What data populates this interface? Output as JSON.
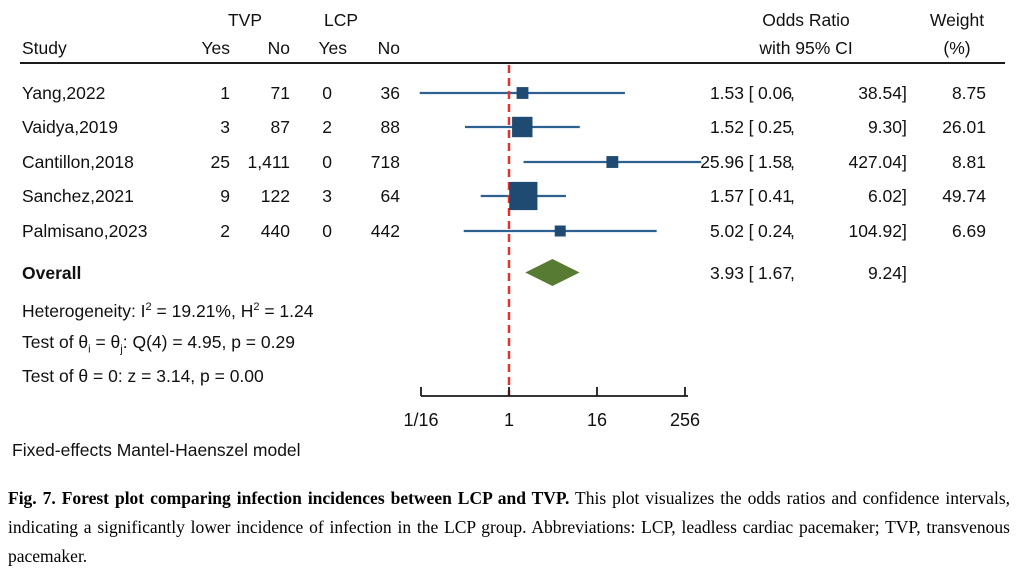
{
  "colors": {
    "marker_square": "#1f4b73",
    "ci_line": "#2e6090",
    "diamond": "#587b33",
    "reference_line": "#e8312a",
    "axis": "#1a1a1a"
  },
  "header": {
    "study": "Study",
    "tvp_group": "TVP",
    "lcp_group": "LCP",
    "tvp_yes": "Yes",
    "tvp_no": "No",
    "lcp_yes": "Yes",
    "lcp_no": "No",
    "or_line1": "Odds Ratio",
    "or_line2": "with 95% CI",
    "weight_line1": "Weight",
    "weight_line2": "(%)"
  },
  "format": {
    "open_bracket": "[",
    "comma": ",",
    "close_bracket": "]"
  },
  "chart_data": {
    "type": "forest",
    "x_scale": "log2",
    "x_ticks": [
      {
        "value": 0.0625,
        "label": "1/16"
      },
      {
        "value": 1,
        "label": "1"
      },
      {
        "value": 16,
        "label": "16"
      },
      {
        "value": 256,
        "label": "256"
      }
    ],
    "reference_value": 1,
    "studies": [
      {
        "label": "Yang,2022",
        "tvp_yes": "1",
        "tvp_no": "71",
        "lcp_yes": "0",
        "lcp_no": "36",
        "or": 1.53,
        "ci_low": 0.06,
        "ci_high": 38.54,
        "weight": 8.75,
        "or_text": "1.53",
        "ci_low_text": "0.06",
        "ci_high_text": "38.54",
        "weight_text": "8.75"
      },
      {
        "label": "Vaidya,2019",
        "tvp_yes": "3",
        "tvp_no": "87",
        "lcp_yes": "2",
        "lcp_no": "88",
        "or": 1.52,
        "ci_low": 0.25,
        "ci_high": 9.3,
        "weight": 26.01,
        "or_text": "1.52",
        "ci_low_text": "0.25",
        "ci_high_text": "9.30",
        "weight_text": "26.01"
      },
      {
        "label": "Cantillon,2018",
        "tvp_yes": "25",
        "tvp_no": "1,411",
        "lcp_yes": "0",
        "lcp_no": "718",
        "or": 25.96,
        "ci_low": 1.58,
        "ci_high": 427.04,
        "weight": 8.81,
        "or_text": "25.96",
        "ci_low_text": "1.58",
        "ci_high_text": "427.04",
        "weight_text": "8.81"
      },
      {
        "label": "Sanchez,2021",
        "tvp_yes": "9",
        "tvp_no": "122",
        "lcp_yes": "3",
        "lcp_no": "64",
        "or": 1.57,
        "ci_low": 0.41,
        "ci_high": 6.02,
        "weight": 49.74,
        "or_text": "1.57",
        "ci_low_text": "0.41",
        "ci_high_text": "6.02",
        "weight_text": "49.74"
      },
      {
        "label": "Palmisano,2023",
        "tvp_yes": "2",
        "tvp_no": "440",
        "lcp_yes": "0",
        "lcp_no": "442",
        "or": 5.02,
        "ci_low": 0.24,
        "ci_high": 104.92,
        "weight": 6.69,
        "or_text": "5.02",
        "ci_low_text": "0.24",
        "ci_high_text": "104.92",
        "weight_text": "6.69"
      }
    ],
    "overall": {
      "or": 3.93,
      "ci_low": 1.67,
      "ci_high": 9.24,
      "or_text": "3.93",
      "ci_low_text": "1.67",
      "ci_high_text": "9.24"
    }
  },
  "stats": {
    "overall_label": "Overall",
    "heterogeneity": {
      "pre": "Heterogeneity: I",
      "sup1": "2",
      "mid": " = 19.21%, H",
      "sup2": "2",
      "post": " = 1.24"
    },
    "test_thetas": {
      "pre": "Test of θ",
      "sub1": "i",
      "mid": " = θ",
      "sub2": "j",
      "post": ": Q(4) = 4.95, p = 0.29"
    },
    "test_zero": "Test of θ = 0: z = 3.14, p = 0.00"
  },
  "footer": {
    "model": "Fixed-effects Mantel-Haenszel model"
  },
  "caption": {
    "bold": "Fig. 7.  Forest plot comparing infection incidences between LCP and TVP.",
    "rest": " This plot visualizes the odds ratios and confidence intervals, indicating a significantly lower incidence of infection in the LCP group.  Abbreviations:  LCP, leadless cardiac pacemaker; TVP, transvenous pacemaker."
  }
}
